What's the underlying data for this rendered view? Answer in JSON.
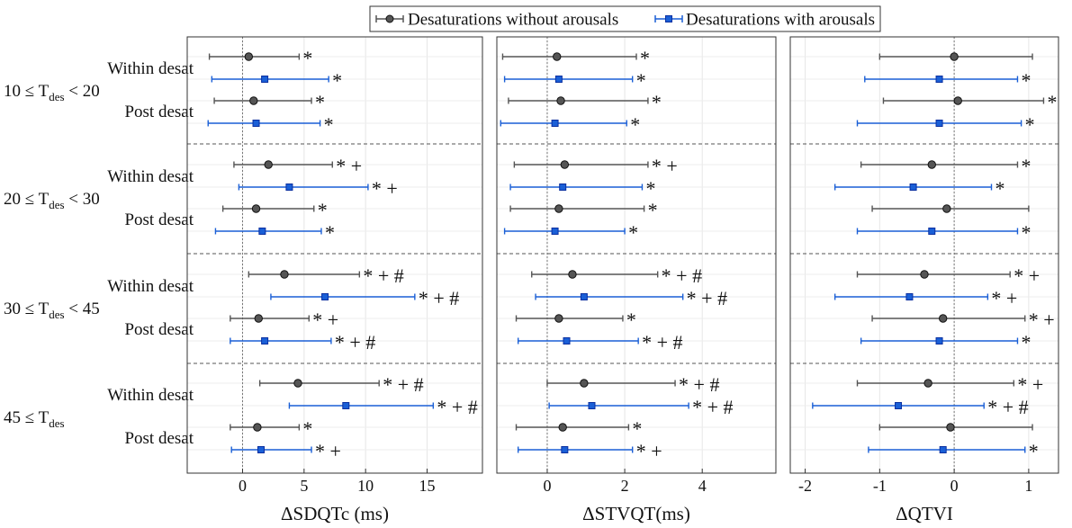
{
  "legend": {
    "entries": [
      {
        "label": "Desaturations without arousals",
        "color": "#555555",
        "marker": "circle"
      },
      {
        "label": "Desaturations with arousals",
        "color": "#1a5fd6",
        "marker": "square"
      }
    ]
  },
  "groups": [
    {
      "prefix": "10 ≤ T",
      "sub": "des",
      "suffix": " < 20"
    },
    {
      "prefix": "20 ≤ T",
      "sub": "des",
      "suffix": " < 30"
    },
    {
      "prefix": "30 ≤ T",
      "sub": "des",
      "suffix": " < 45"
    },
    {
      "prefix": "45 ≤ T",
      "sub": "des",
      "suffix": ""
    }
  ],
  "row_labels": [
    "Within desat",
    "Post desat"
  ],
  "chart_data": [
    {
      "type": "errorbar",
      "xlabel": "ΔSDQTc (ms)",
      "xlim": [
        -4.5,
        19.5
      ],
      "xticks": [
        0,
        5,
        10,
        15
      ],
      "xtick_labels": [
        "0",
        "5",
        "10",
        "15"
      ],
      "series": [
        {
          "name": "Desaturations without arousals",
          "points": [
            {
              "group": 0,
              "phase": "Within desat",
              "mean": 0.5,
              "lo": -2.7,
              "hi": 4.6,
              "sig": "*"
            },
            {
              "group": 0,
              "phase": "Post desat",
              "mean": 0.9,
              "lo": -2.3,
              "hi": 5.6,
              "sig": "*"
            },
            {
              "group": 1,
              "phase": "Within desat",
              "mean": 2.1,
              "lo": -0.7,
              "hi": 7.3,
              "sig": "* +"
            },
            {
              "group": 1,
              "phase": "Post desat",
              "mean": 1.1,
              "lo": -1.6,
              "hi": 5.8,
              "sig": "*"
            },
            {
              "group": 2,
              "phase": "Within desat",
              "mean": 3.4,
              "lo": 0.5,
              "hi": 9.5,
              "sig": "* + #"
            },
            {
              "group": 2,
              "phase": "Post desat",
              "mean": 1.3,
              "lo": -1.0,
              "hi": 5.4,
              "sig": "* +"
            },
            {
              "group": 3,
              "phase": "Within desat",
              "mean": 4.5,
              "lo": 1.4,
              "hi": 11.1,
              "sig": "* + #"
            },
            {
              "group": 3,
              "phase": "Post desat",
              "mean": 1.2,
              "lo": -1.0,
              "hi": 4.6,
              "sig": "*"
            }
          ]
        },
        {
          "name": "Desaturations with arousals",
          "points": [
            {
              "group": 0,
              "phase": "Within desat",
              "mean": 1.8,
              "lo": -2.5,
              "hi": 7.0,
              "sig": "*"
            },
            {
              "group": 0,
              "phase": "Post desat",
              "mean": 1.1,
              "lo": -2.8,
              "hi": 6.3,
              "sig": "*"
            },
            {
              "group": 1,
              "phase": "Within desat",
              "mean": 3.8,
              "lo": -0.3,
              "hi": 10.2,
              "sig": "* +"
            },
            {
              "group": 1,
              "phase": "Post desat",
              "mean": 1.6,
              "lo": -2.2,
              "hi": 6.4,
              "sig": "*"
            },
            {
              "group": 2,
              "phase": "Within desat",
              "mean": 6.7,
              "lo": 2.3,
              "hi": 14.0,
              "sig": "* + #"
            },
            {
              "group": 2,
              "phase": "Post desat",
              "mean": 1.8,
              "lo": -1.0,
              "hi": 7.2,
              "sig": "* + #"
            },
            {
              "group": 3,
              "phase": "Within desat",
              "mean": 8.4,
              "lo": 3.8,
              "hi": 15.5,
              "sig": "* + #"
            },
            {
              "group": 3,
              "phase": "Post desat",
              "mean": 1.5,
              "lo": -0.9,
              "hi": 5.6,
              "sig": "* +"
            }
          ]
        }
      ]
    },
    {
      "type": "errorbar",
      "xlabel": "ΔSTVQT(ms)",
      "xlim": [
        -1.3,
        5.9
      ],
      "xticks": [
        0,
        2,
        4
      ],
      "xtick_labels": [
        "0",
        "2",
        "4"
      ],
      "series": [
        {
          "name": "Desaturations without arousals",
          "points": [
            {
              "group": 0,
              "phase": "Within desat",
              "mean": 0.25,
              "lo": -1.15,
              "hi": 2.3,
              "sig": "*"
            },
            {
              "group": 0,
              "phase": "Post desat",
              "mean": 0.35,
              "lo": -1.0,
              "hi": 2.6,
              "sig": "*"
            },
            {
              "group": 1,
              "phase": "Within desat",
              "mean": 0.45,
              "lo": -0.85,
              "hi": 2.6,
              "sig": "* +"
            },
            {
              "group": 1,
              "phase": "Post desat",
              "mean": 0.3,
              "lo": -0.95,
              "hi": 2.5,
              "sig": "*"
            },
            {
              "group": 2,
              "phase": "Within desat",
              "mean": 0.65,
              "lo": -0.4,
              "hi": 2.85,
              "sig": "* + #"
            },
            {
              "group": 2,
              "phase": "Post desat",
              "mean": 0.3,
              "lo": -0.8,
              "hi": 1.95,
              "sig": "*"
            },
            {
              "group": 3,
              "phase": "Within desat",
              "mean": 0.95,
              "lo": 0.0,
              "hi": 3.3,
              "sig": "* + #"
            },
            {
              "group": 3,
              "phase": "Post desat",
              "mean": 0.4,
              "lo": -0.8,
              "hi": 2.1,
              "sig": "*"
            }
          ]
        },
        {
          "name": "Desaturations with arousals",
          "points": [
            {
              "group": 0,
              "phase": "Within desat",
              "mean": 0.3,
              "lo": -1.1,
              "hi": 2.2,
              "sig": "*"
            },
            {
              "group": 0,
              "phase": "Post desat",
              "mean": 0.2,
              "lo": -1.2,
              "hi": 2.05,
              "sig": "*"
            },
            {
              "group": 1,
              "phase": "Within desat",
              "mean": 0.4,
              "lo": -0.95,
              "hi": 2.45,
              "sig": "*"
            },
            {
              "group": 1,
              "phase": "Post desat",
              "mean": 0.2,
              "lo": -1.1,
              "hi": 2.0,
              "sig": "*"
            },
            {
              "group": 2,
              "phase": "Within desat",
              "mean": 0.95,
              "lo": -0.3,
              "hi": 3.5,
              "sig": "* + #"
            },
            {
              "group": 2,
              "phase": "Post desat",
              "mean": 0.5,
              "lo": -0.75,
              "hi": 2.35,
              "sig": "* + #"
            },
            {
              "group": 3,
              "phase": "Within desat",
              "mean": 1.15,
              "lo": 0.05,
              "hi": 3.65,
              "sig": "* + #"
            },
            {
              "group": 3,
              "phase": "Post desat",
              "mean": 0.45,
              "lo": -0.75,
              "hi": 2.2,
              "sig": "* +"
            }
          ]
        }
      ]
    },
    {
      "type": "errorbar",
      "xlabel": "ΔQTVI",
      "xlim": [
        -2.2,
        1.4
      ],
      "xticks": [
        -2,
        -1,
        0,
        1
      ],
      "xtick_labels": [
        "-2",
        "-1",
        "0",
        "1"
      ],
      "series": [
        {
          "name": "Desaturations without arousals",
          "points": [
            {
              "group": 0,
              "phase": "Within desat",
              "mean": 0.0,
              "lo": -1.0,
              "hi": 1.05,
              "sig": ""
            },
            {
              "group": 0,
              "phase": "Post desat",
              "mean": 0.05,
              "lo": -0.95,
              "hi": 1.2,
              "sig": "*"
            },
            {
              "group": 1,
              "phase": "Within desat",
              "mean": -0.3,
              "lo": -1.25,
              "hi": 0.85,
              "sig": "*"
            },
            {
              "group": 1,
              "phase": "Post desat",
              "mean": -0.1,
              "lo": -1.1,
              "hi": 1.0,
              "sig": ""
            },
            {
              "group": 2,
              "phase": "Within desat",
              "mean": -0.4,
              "lo": -1.3,
              "hi": 0.75,
              "sig": "* +"
            },
            {
              "group": 2,
              "phase": "Post desat",
              "mean": -0.15,
              "lo": -1.1,
              "hi": 0.95,
              "sig": "* +"
            },
            {
              "group": 3,
              "phase": "Within desat",
              "mean": -0.35,
              "lo": -1.3,
              "hi": 0.8,
              "sig": "* +"
            },
            {
              "group": 3,
              "phase": "Post desat",
              "mean": -0.05,
              "lo": -1.0,
              "hi": 1.05,
              "sig": ""
            }
          ]
        },
        {
          "name": "Desaturations with arousals",
          "points": [
            {
              "group": 0,
              "phase": "Within desat",
              "mean": -0.2,
              "lo": -1.2,
              "hi": 0.85,
              "sig": "*"
            },
            {
              "group": 0,
              "phase": "Post desat",
              "mean": -0.2,
              "lo": -1.3,
              "hi": 0.9,
              "sig": "*"
            },
            {
              "group": 1,
              "phase": "Within desat",
              "mean": -0.55,
              "lo": -1.6,
              "hi": 0.5,
              "sig": "*"
            },
            {
              "group": 1,
              "phase": "Post desat",
              "mean": -0.3,
              "lo": -1.3,
              "hi": 0.85,
              "sig": "*"
            },
            {
              "group": 2,
              "phase": "Within desat",
              "mean": -0.6,
              "lo": -1.6,
              "hi": 0.45,
              "sig": "* +"
            },
            {
              "group": 2,
              "phase": "Post desat",
              "mean": -0.2,
              "lo": -1.25,
              "hi": 0.85,
              "sig": "*"
            },
            {
              "group": 3,
              "phase": "Within desat",
              "mean": -0.75,
              "lo": -1.9,
              "hi": 0.4,
              "sig": "* + #"
            },
            {
              "group": 3,
              "phase": "Post desat",
              "mean": -0.15,
              "lo": -1.15,
              "hi": 0.95,
              "sig": "*"
            }
          ]
        }
      ]
    }
  ]
}
